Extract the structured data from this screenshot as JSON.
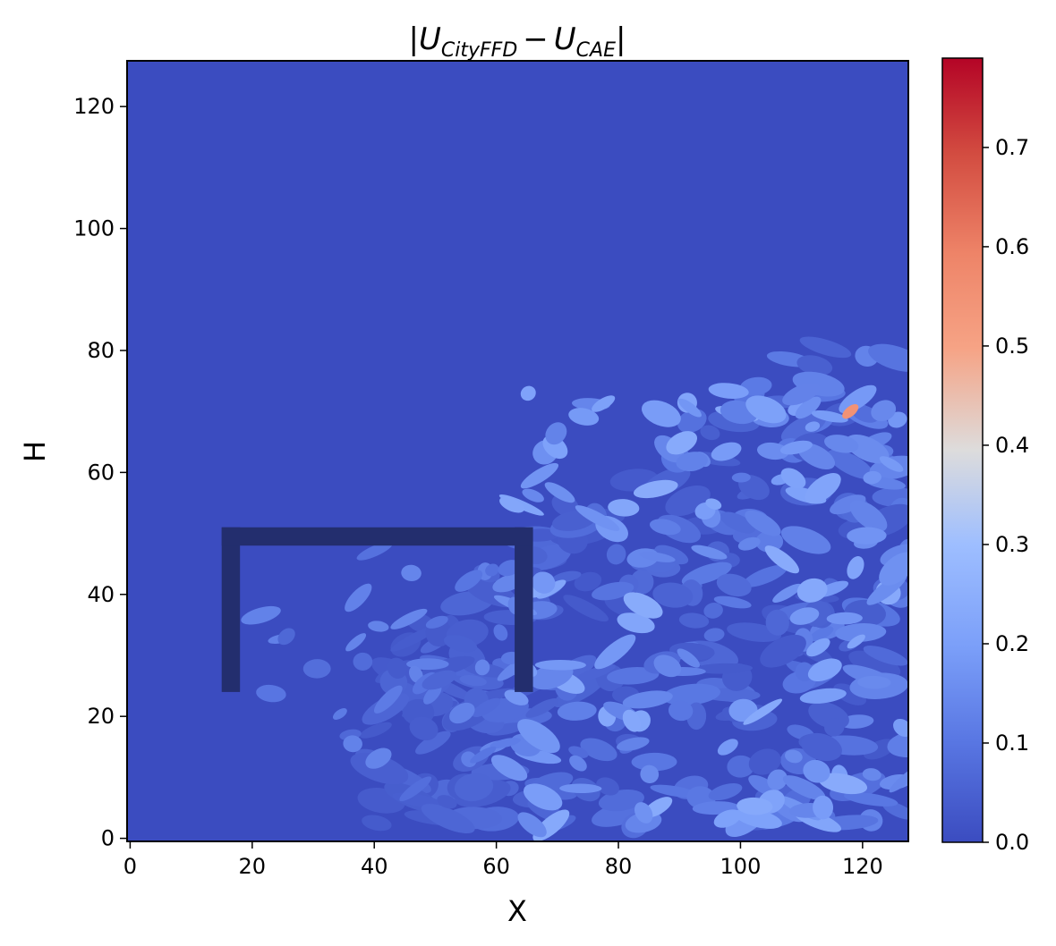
{
  "chart_data": {
    "type": "heatmap",
    "title_parts": {
      "bar_left": "|",
      "u1": "U",
      "sub1": "CityFFD",
      "minus": "−",
      "u2": "U",
      "sub2": "CAE",
      "bar_right": "|"
    },
    "xlabel": "X",
    "ylabel": "H",
    "xlim": [
      -0.5,
      127.5
    ],
    "ylim": [
      -0.5,
      127.5
    ],
    "x_ticks": [
      0,
      20,
      40,
      60,
      80,
      100,
      120
    ],
    "y_ticks": [
      0,
      20,
      40,
      60,
      80,
      100,
      120
    ],
    "colorbar": {
      "colormap": "coolwarm",
      "range": [
        0.0,
        0.79
      ],
      "ticks": [
        0.0,
        0.1,
        0.2,
        0.3,
        0.4,
        0.5,
        0.6,
        0.7
      ],
      "tick_labels": [
        "0.0",
        "0.1",
        "0.2",
        "0.3",
        "0.4",
        "0.5",
        "0.6",
        "0.7"
      ]
    },
    "obstacle_outline": {
      "color": "#232e6e",
      "left_wall_x": [
        15,
        18
      ],
      "right_wall_x": [
        63,
        66
      ],
      "top_y": [
        48,
        51
      ],
      "bottom_y": 24
    },
    "field_description_values": {
      "background_error": 0.02,
      "peak_error": 0.55,
      "peak_location_x": 118,
      "peak_location_y": 70
    }
  }
}
